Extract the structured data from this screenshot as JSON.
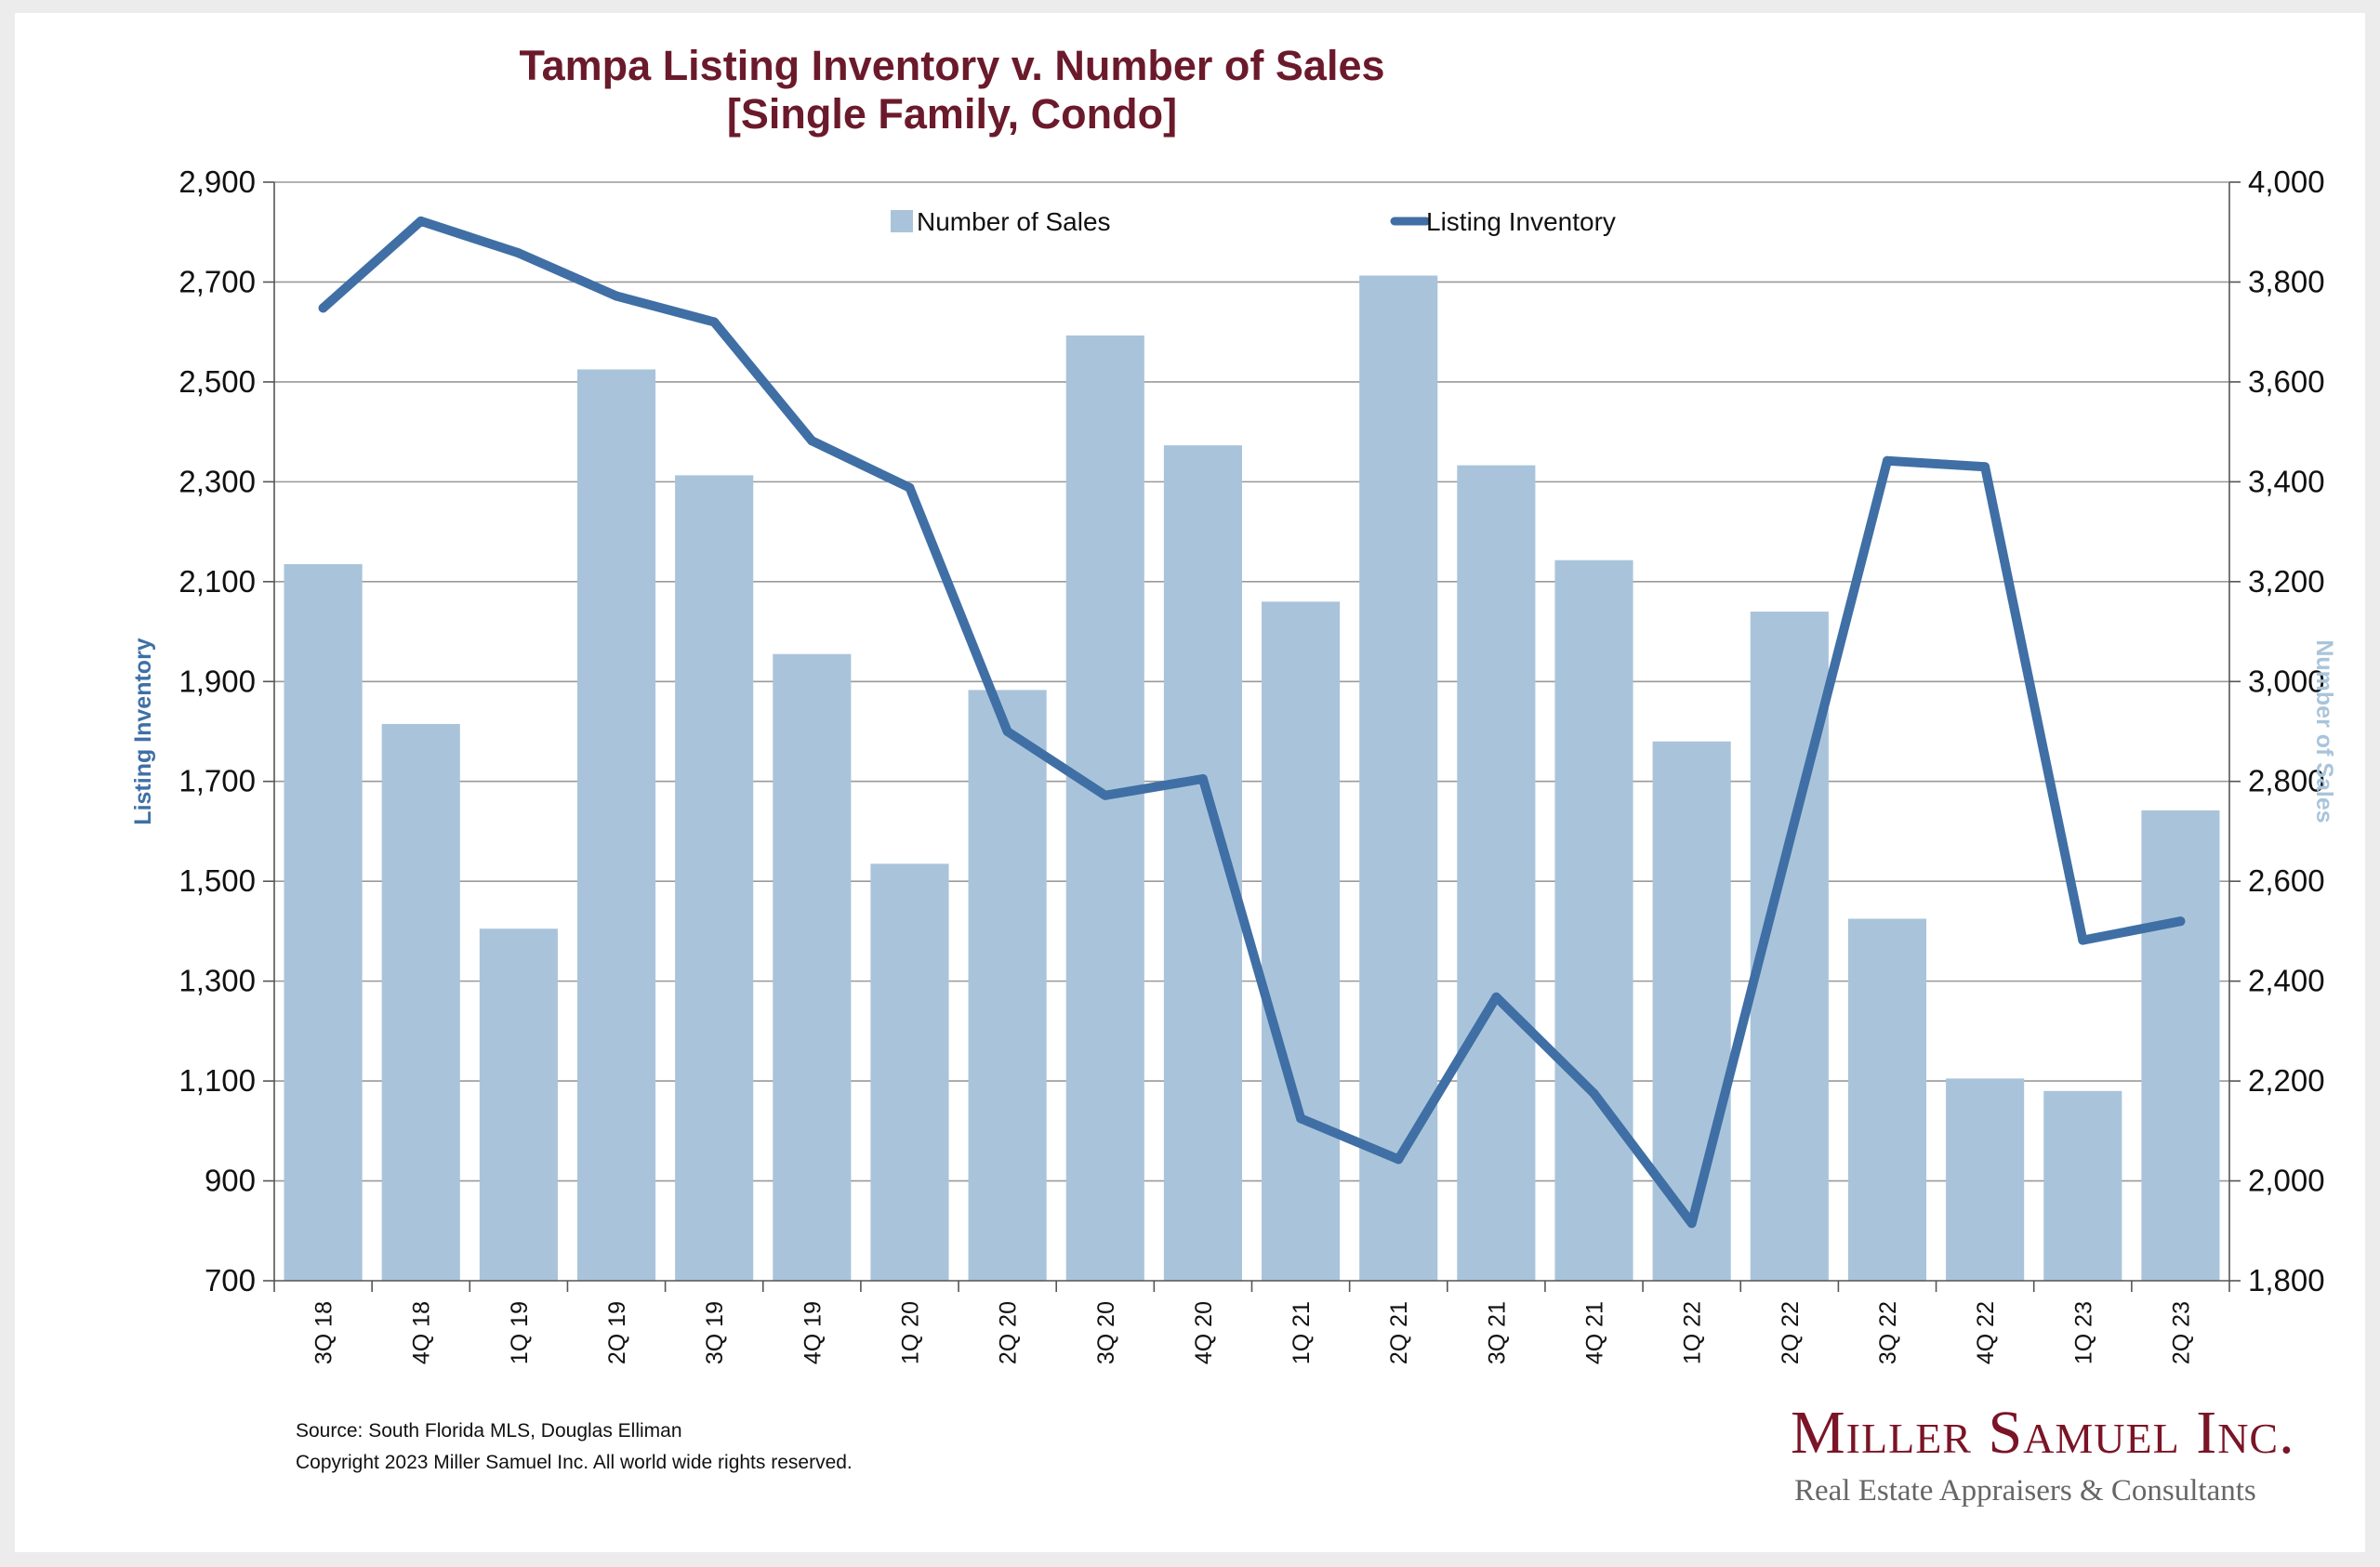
{
  "chart_data": {
    "type": "bar",
    "title": "Tampa Listing Inventory v. Number of Sales",
    "subtitle": "[Single Family, Condo]",
    "categories": [
      "3Q 18",
      "4Q 18",
      "1Q 19",
      "2Q 19",
      "3Q 19",
      "4Q 19",
      "1Q 20",
      "2Q 20",
      "3Q 20",
      "4Q 20",
      "1Q 21",
      "2Q 21",
      "3Q 21",
      "4Q 21",
      "1Q 22",
      "2Q 22",
      "3Q 22",
      "4Q 22",
      "1Q 23",
      "2Q 23"
    ],
    "series": [
      {
        "name": "Number of Sales",
        "type": "bar",
        "axis": "right",
        "color": "#a9c4da",
        "values": [
          3235,
          2915,
          2505,
          3625,
          3413,
          3055,
          2635,
          2983,
          3693,
          3473,
          3160,
          3813,
          3433,
          3243,
          2880,
          3140,
          2525,
          2205,
          2180,
          2742
        ]
      },
      {
        "name": "Listing Inventory",
        "type": "line",
        "axis": "left",
        "color": "#3f6fa5",
        "values": [
          2648,
          2822,
          2758,
          2672,
          2620,
          2382,
          2288,
          1800,
          1672,
          1705,
          1025,
          943,
          1268,
          1075,
          815,
          1580,
          2342,
          2330,
          1382,
          1420
        ]
      }
    ],
    "ylabel": "Listing Inventory",
    "ylim": [
      700,
      2900
    ],
    "yticks": [
      "700",
      "900",
      "1,100",
      "1,300",
      "1,500",
      "1,700",
      "1,900",
      "2,100",
      "2,300",
      "2,500",
      "2,700",
      "2,900"
    ],
    "y2label": "Number of Sales",
    "y2lim": [
      1800,
      4000
    ],
    "y2ticks": [
      "1,800",
      "2,000",
      "2,200",
      "2,400",
      "2,600",
      "2,800",
      "3,000",
      "3,200",
      "3,400",
      "3,600",
      "3,800",
      "4,000"
    ],
    "grid": true,
    "legend": "top-center"
  },
  "footer": {
    "source": "Source: South Florida MLS, Douglas Elliman",
    "copyright": "Copyright 2023 Miller Samuel Inc.  All world wide rights reserved."
  },
  "brand": {
    "name": "Miller Samuel Inc.",
    "tagline": "Real Estate Appraisers & Consultants"
  }
}
